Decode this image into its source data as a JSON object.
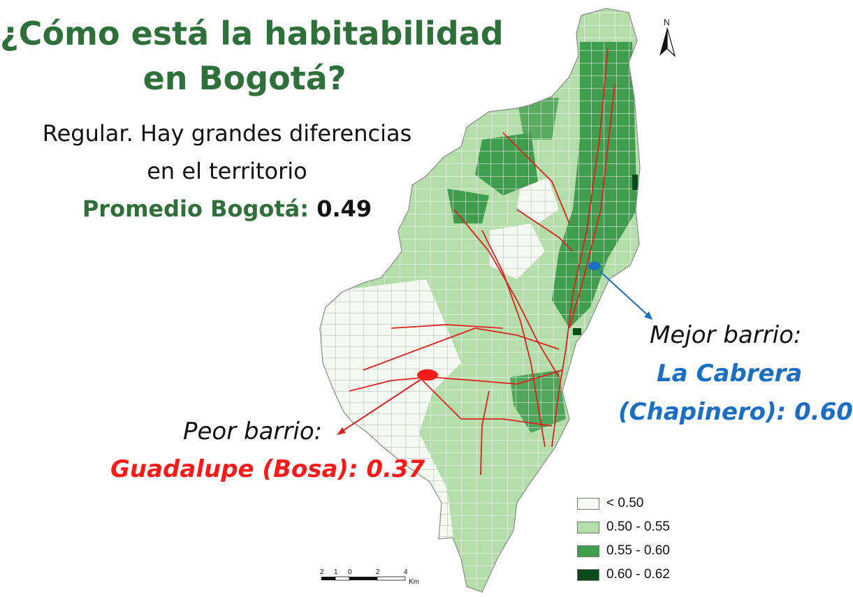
{
  "title": {
    "line1": "¿Cómo está la habitabilidad",
    "line2": "en Bogotá?"
  },
  "subtitle": {
    "line1": "Regular. Hay grandes diferencias",
    "line2": "en el territorio"
  },
  "average": {
    "label": "Promedio Bogotá:",
    "value": "0.49"
  },
  "worst": {
    "label": "Peor barrio:",
    "value": "Guadalupe (Bosa): 0.37",
    "color": "#ff1a1a"
  },
  "best": {
    "label": "Mejor barrio:",
    "value_line1": "La Cabrera",
    "value_line2": "(Chapinero): 0.60",
    "color": "#1a6fc4"
  },
  "north_label": "N",
  "legend": [
    {
      "label": "< 0.50",
      "color": "#f4faf2"
    },
    {
      "label": "0.50 - 0.55",
      "color": "#b3dda9"
    },
    {
      "label": "0.55 - 0.60",
      "color": "#3f9e4d"
    },
    {
      "label": "0.60 - 0.62",
      "color": "#0b4a1b"
    }
  ],
  "scale_bar": {
    "ticks": [
      "2",
      "1",
      "0",
      "2",
      "4"
    ],
    "unit": "Km"
  },
  "colors": {
    "title_green": "#2f6f3a",
    "roads": "#e02020"
  }
}
